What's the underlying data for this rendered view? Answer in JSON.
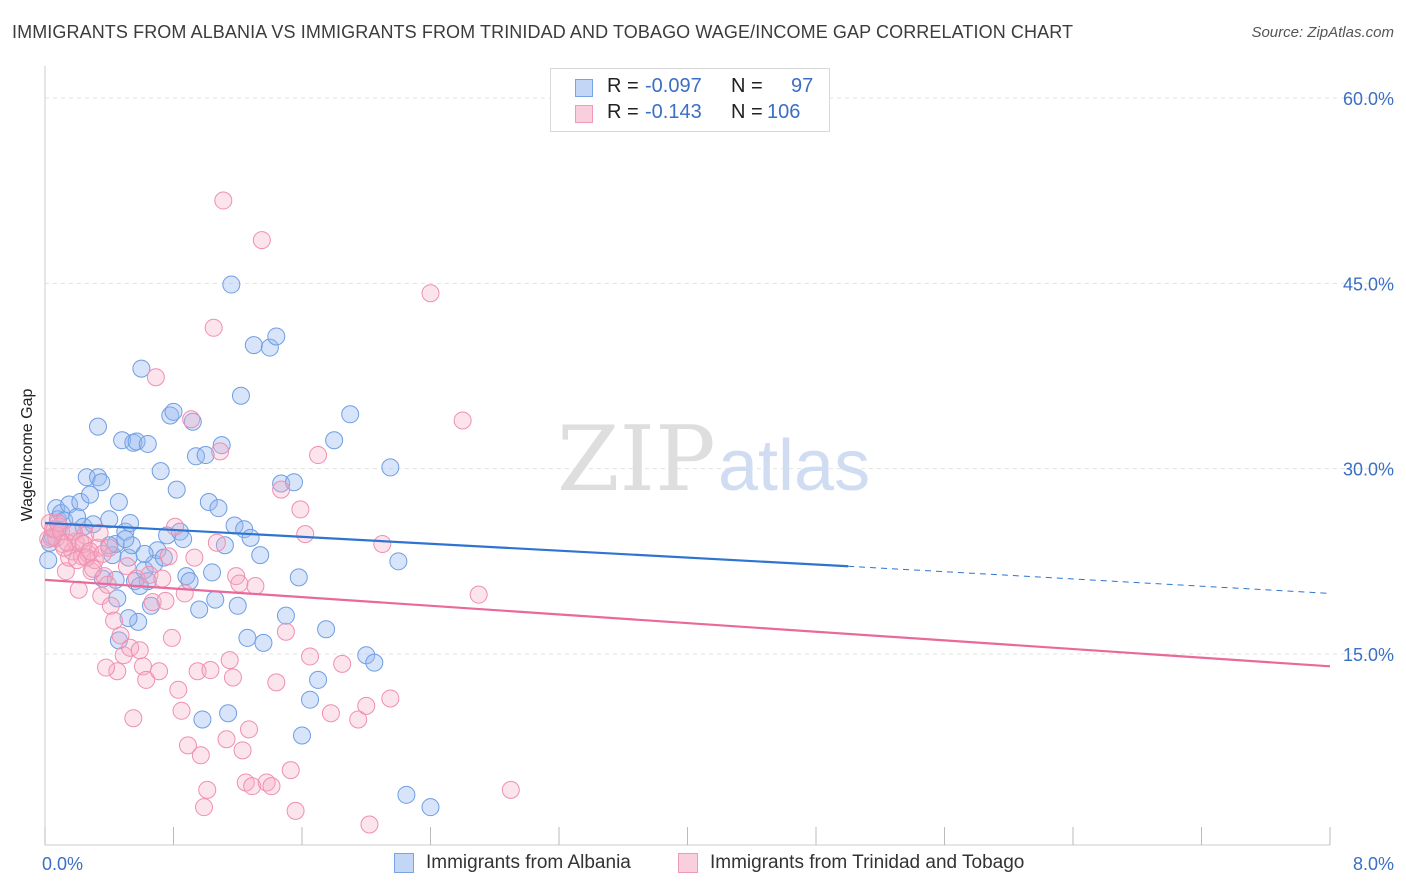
{
  "title": "IMMIGRANTS FROM ALBANIA VS IMMIGRANTS FROM TRINIDAD AND TOBAGO WAGE/INCOME GAP CORRELATION CHART",
  "source": "Source: ZipAtlas.com",
  "watermark": {
    "zip": "ZIP",
    "atlas": "atlas"
  },
  "legend": [
    {
      "r_label": "R =",
      "r_value": "-0.097",
      "n_label": "N =",
      "n_value": "97"
    },
    {
      "r_label": "R =",
      "r_value": " -0.143",
      "n_label": "N =",
      "n_value": "106"
    }
  ],
  "chart_data": {
    "type": "scatter",
    "title": "IMMIGRANTS FROM ALBANIA VS IMMIGRANTS FROM TRINIDAD AND TOBAGO WAGE/INCOME GAP CORRELATION CHART",
    "xlabel": "",
    "ylabel": "Wage/Income Gap",
    "xlim": [
      0,
      8
    ],
    "ylim": [
      0,
      61.5
    ],
    "x_tick_labels": [
      "0.0%",
      "8.0%"
    ],
    "y_tick_labels": [
      "15.0%",
      "30.0%",
      "45.0%",
      "60.0%"
    ],
    "y_ticks": [
      15,
      30,
      45,
      60
    ],
    "grid": true,
    "colors": {
      "albania": "#6f9ee3",
      "albania_line": "#2f74d0",
      "trinidad": "#f08fb0",
      "trinidad_line": "#e8699a",
      "axis_label": "#3b6fc4"
    },
    "series": [
      {
        "name": "Immigrants from Albania",
        "color": "#6f9ee3",
        "trend": {
          "x0": 0,
          "y0": 25.6,
          "x1": 5.0,
          "y1": 22.1,
          "dash_to_x": 8.0,
          "dash_to_y": 19.9
        },
        "points": [
          [
            0.02,
            22.6
          ],
          [
            0.03,
            24.0
          ],
          [
            0.05,
            24.5
          ],
          [
            0.07,
            26.8
          ],
          [
            0.08,
            25.9
          ],
          [
            0.1,
            26.4
          ],
          [
            0.12,
            25.8
          ],
          [
            0.15,
            27.1
          ],
          [
            0.17,
            24.9
          ],
          [
            0.2,
            26.1
          ],
          [
            0.22,
            27.3
          ],
          [
            0.24,
            25.3
          ],
          [
            0.26,
            29.3
          ],
          [
            0.28,
            27.9
          ],
          [
            0.3,
            25.5
          ],
          [
            0.33,
            29.3
          ],
          [
            0.35,
            28.9
          ],
          [
            0.36,
            21.1
          ],
          [
            0.4,
            25.9
          ],
          [
            0.42,
            23.0
          ],
          [
            0.44,
            23.9
          ],
          [
            0.46,
            27.3
          ],
          [
            0.48,
            32.3
          ],
          [
            0.5,
            24.9
          ],
          [
            0.52,
            22.8
          ],
          [
            0.54,
            23.8
          ],
          [
            0.56,
            20.9
          ],
          [
            0.58,
            17.6
          ],
          [
            0.6,
            38.1
          ],
          [
            0.62,
            21.8
          ],
          [
            0.64,
            20.9
          ],
          [
            0.66,
            18.9
          ],
          [
            0.68,
            22.3
          ],
          [
            0.7,
            23.4
          ],
          [
            0.72,
            29.8
          ],
          [
            0.74,
            22.8
          ],
          [
            0.76,
            24.6
          ],
          [
            0.78,
            34.3
          ],
          [
            0.8,
            34.6
          ],
          [
            0.82,
            28.3
          ],
          [
            0.84,
            24.9
          ],
          [
            0.86,
            24.3
          ],
          [
            0.88,
            21.3
          ],
          [
            0.9,
            20.9
          ],
          [
            0.92,
            33.8
          ],
          [
            0.94,
            31.0
          ],
          [
            0.96,
            18.6
          ],
          [
            0.98,
            9.7
          ],
          [
            1.0,
            31.1
          ],
          [
            1.02,
            27.3
          ],
          [
            1.04,
            21.6
          ],
          [
            1.06,
            19.4
          ],
          [
            1.08,
            26.8
          ],
          [
            1.1,
            31.9
          ],
          [
            1.12,
            23.8
          ],
          [
            1.14,
            10.2
          ],
          [
            1.16,
            44.9
          ],
          [
            1.18,
            25.4
          ],
          [
            1.2,
            18.9
          ],
          [
            1.22,
            35.9
          ],
          [
            1.24,
            25.1
          ],
          [
            1.26,
            16.3
          ],
          [
            1.28,
            24.4
          ],
          [
            1.3,
            40.0
          ],
          [
            1.34,
            23.0
          ],
          [
            1.36,
            15.9
          ],
          [
            1.4,
            39.8
          ],
          [
            1.44,
            40.7
          ],
          [
            1.47,
            28.8
          ],
          [
            1.5,
            18.1
          ],
          [
            1.55,
            28.9
          ],
          [
            1.58,
            21.2
          ],
          [
            1.6,
            8.4
          ],
          [
            1.65,
            11.3
          ],
          [
            1.7,
            12.9
          ],
          [
            1.75,
            17.0
          ],
          [
            1.8,
            32.3
          ],
          [
            1.9,
            34.4
          ],
          [
            2.0,
            14.9
          ],
          [
            2.05,
            14.3
          ],
          [
            2.15,
            30.1
          ],
          [
            2.2,
            22.5
          ],
          [
            2.25,
            3.6
          ],
          [
            2.4,
            2.6
          ],
          [
            0.33,
            33.4
          ],
          [
            0.4,
            23.8
          ],
          [
            0.44,
            21.0
          ],
          [
            0.45,
            19.5
          ],
          [
            0.46,
            16.1
          ],
          [
            0.5,
            24.3
          ],
          [
            0.52,
            17.9
          ],
          [
            0.53,
            25.6
          ],
          [
            0.55,
            32.1
          ],
          [
            0.57,
            32.2
          ],
          [
            0.59,
            20.5
          ],
          [
            0.62,
            23.1
          ],
          [
            0.64,
            32.0
          ]
        ]
      },
      {
        "name": "Immigrants from Trinidad and Tobago",
        "color": "#f08fb0",
        "trend": {
          "x0": 0,
          "y0": 21.0,
          "x1": 8.0,
          "y1": 14.0
        },
        "points": [
          [
            0.02,
            24.3
          ],
          [
            0.03,
            25.6
          ],
          [
            0.05,
            25.1
          ],
          [
            0.07,
            24.4
          ],
          [
            0.09,
            25.3
          ],
          [
            0.11,
            23.9
          ],
          [
            0.13,
            21.7
          ],
          [
            0.15,
            22.8
          ],
          [
            0.17,
            23.3
          ],
          [
            0.19,
            24.1
          ],
          [
            0.21,
            20.2
          ],
          [
            0.23,
            22.9
          ],
          [
            0.25,
            24.6
          ],
          [
            0.27,
            23.1
          ],
          [
            0.29,
            21.7
          ],
          [
            0.31,
            22.6
          ],
          [
            0.33,
            23.6
          ],
          [
            0.35,
            19.7
          ],
          [
            0.37,
            21.3
          ],
          [
            0.39,
            20.6
          ],
          [
            0.41,
            18.9
          ],
          [
            0.43,
            17.7
          ],
          [
            0.45,
            13.6
          ],
          [
            0.47,
            16.5
          ],
          [
            0.49,
            14.9
          ],
          [
            0.51,
            22.1
          ],
          [
            0.53,
            15.5
          ],
          [
            0.55,
            9.8
          ],
          [
            0.57,
            21.1
          ],
          [
            0.59,
            15.3
          ],
          [
            0.61,
            14.0
          ],
          [
            0.63,
            12.9
          ],
          [
            0.65,
            21.4
          ],
          [
            0.67,
            19.2
          ],
          [
            0.69,
            37.4
          ],
          [
            0.71,
            13.6
          ],
          [
            0.73,
            21.1
          ],
          [
            0.75,
            19.3
          ],
          [
            0.77,
            22.9
          ],
          [
            0.79,
            16.3
          ],
          [
            0.81,
            25.3
          ],
          [
            0.83,
            12.1
          ],
          [
            0.85,
            10.4
          ],
          [
            0.87,
            19.9
          ],
          [
            0.89,
            7.6
          ],
          [
            0.91,
            34.0
          ],
          [
            0.93,
            22.8
          ],
          [
            0.95,
            13.6
          ],
          [
            0.97,
            6.8
          ],
          [
            0.99,
            2.6
          ],
          [
            1.01,
            4.0
          ],
          [
            1.03,
            13.7
          ],
          [
            1.05,
            41.4
          ],
          [
            1.07,
            24.0
          ],
          [
            1.09,
            31.4
          ],
          [
            1.11,
            51.7
          ],
          [
            1.13,
            8.1
          ],
          [
            1.15,
            14.5
          ],
          [
            1.17,
            13.1
          ],
          [
            1.19,
            21.3
          ],
          [
            1.21,
            20.7
          ],
          [
            1.23,
            7.2
          ],
          [
            1.25,
            4.6
          ],
          [
            1.27,
            8.9
          ],
          [
            1.29,
            4.3
          ],
          [
            1.31,
            20.5
          ],
          [
            1.35,
            48.5
          ],
          [
            1.38,
            4.6
          ],
          [
            1.41,
            4.3
          ],
          [
            1.44,
            12.7
          ],
          [
            1.47,
            28.3
          ],
          [
            1.5,
            16.8
          ],
          [
            1.53,
            5.6
          ],
          [
            1.56,
            2.3
          ],
          [
            1.59,
            26.7
          ],
          [
            1.62,
            24.7
          ],
          [
            1.65,
            14.8
          ],
          [
            1.7,
            31.1
          ],
          [
            1.78,
            10.2
          ],
          [
            1.85,
            14.2
          ],
          [
            1.95,
            9.7
          ],
          [
            2.0,
            10.8
          ],
          [
            2.02,
            1.2
          ],
          [
            2.1,
            23.9
          ],
          [
            2.15,
            11.4
          ],
          [
            2.4,
            44.2
          ],
          [
            2.6,
            33.9
          ],
          [
            2.7,
            19.8
          ],
          [
            2.9,
            4.0
          ],
          [
            0.04,
            24.4
          ],
          [
            0.06,
            25.1
          ],
          [
            0.08,
            25.6
          ],
          [
            0.1,
            24.9
          ],
          [
            0.12,
            23.6
          ],
          [
            0.14,
            24.0
          ],
          [
            0.18,
            24.9
          ],
          [
            0.2,
            22.6
          ],
          [
            0.22,
            24.1
          ],
          [
            0.24,
            23.9
          ],
          [
            0.26,
            22.8
          ],
          [
            0.28,
            23.3
          ],
          [
            0.3,
            21.9
          ],
          [
            0.34,
            24.8
          ],
          [
            0.36,
            23.1
          ],
          [
            0.38,
            13.9
          ],
          [
            0.4,
            23.6
          ]
        ]
      }
    ]
  },
  "bottom_legend": [
    "Immigrants from Albania",
    "Immigrants from Trinidad and Tobago"
  ]
}
